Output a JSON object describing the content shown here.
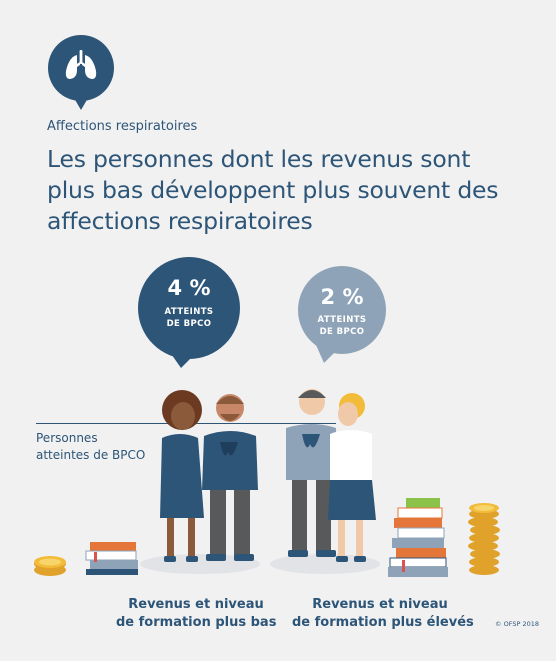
{
  "category": "Affections respiratoires",
  "headline": [
    "Les personnes dont les revenus sont",
    "plus bas développent plus souvent des",
    "affections respiratoires"
  ],
  "icon": "lungs-icon",
  "low_group": {
    "percent": "4 %",
    "label_line1": "ATTEINTS",
    "label_line2": "DE BPCO",
    "caption_line1": "Revenus et niveau",
    "caption_line2": "de formation plus bas"
  },
  "high_group": {
    "percent": "2 %",
    "label_line1": "ATTEINTS",
    "label_line2": "DE BPCO",
    "caption_line1": "Revenus et niveau",
    "caption_line2": "de formation plus élevés"
  },
  "side_label": {
    "line1": "Personnes",
    "line2": "atteintes de BPCO"
  },
  "credit": "© OFSP 2018",
  "colors": {
    "background": "#f1f1f2",
    "dark_blue": "#2d5577",
    "light_blue": "#8fa3b8",
    "gold": "#f2bb3a"
  }
}
